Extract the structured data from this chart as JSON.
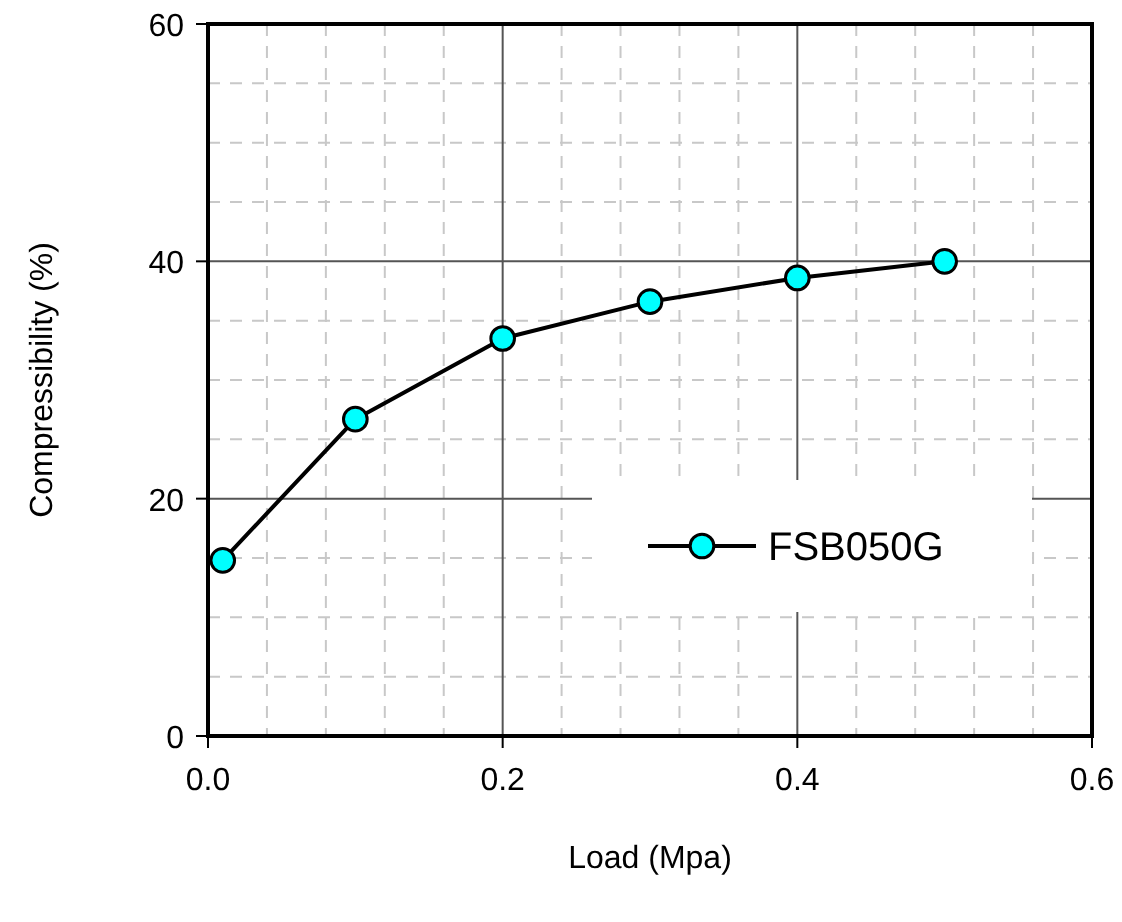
{
  "chart_data": {
    "type": "line",
    "xlabel": "Load (Mpa)",
    "ylabel": "Compressibility (%)",
    "x": [
      0.01,
      0.1,
      0.2,
      0.3,
      0.4,
      0.5
    ],
    "series": [
      {
        "name": "FSB050G",
        "color": "#00ffff",
        "values": [
          14.8,
          26.7,
          33.5,
          36.6,
          38.6,
          40.0
        ]
      }
    ],
    "xlim": [
      0,
      0.6
    ],
    "xticks": [
      {
        "value": 0,
        "label": "0.0"
      },
      0.2,
      0.4,
      0.6
    ],
    "ylim": [
      0,
      60
    ],
    "yticks": [
      0,
      20,
      40,
      60
    ],
    "grid": true,
    "legend": "bottom right",
    "marker": "circle",
    "line_style": "solid"
  }
}
